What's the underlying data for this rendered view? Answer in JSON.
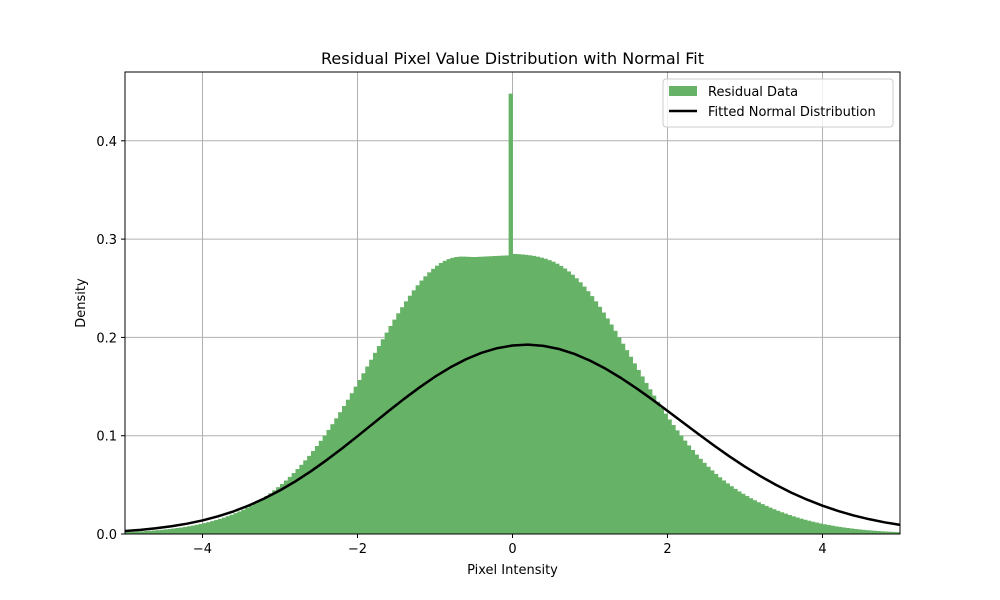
{
  "chart_data": {
    "type": "histogram",
    "title": "Residual Pixel Value Distribution with Normal Fit",
    "xlabel": "Pixel Intensity",
    "ylabel": "Density",
    "xlim": [
      -5,
      5
    ],
    "ylim": [
      0,
      0.47
    ],
    "xticks": [
      -4,
      -2,
      0,
      2,
      4
    ],
    "xtick_labels": [
      "−4",
      "−2",
      "0",
      "2",
      "4"
    ],
    "yticks": [
      0.0,
      0.1,
      0.2,
      0.3,
      0.4
    ],
    "ytick_labels": [
      "0.0",
      "0.1",
      "0.2",
      "0.3",
      "0.4"
    ],
    "grid": true,
    "legend_position": "top-right",
    "series": [
      {
        "name": "Residual Data",
        "kind": "histogram",
        "color": "#66b266",
        "bin_width": 0.05,
        "x": [
          -4.975,
          -4.925,
          -4.875,
          -4.825,
          -4.775,
          -4.725,
          -4.675,
          -4.625,
          -4.575,
          -4.525,
          -4.475,
          -4.425,
          -4.375,
          -4.325,
          -4.275,
          -4.225,
          -4.175,
          -4.125,
          -4.075,
          -4.025,
          -3.975,
          -3.925,
          -3.875,
          -3.825,
          -3.775,
          -3.725,
          -3.675,
          -3.625,
          -3.575,
          -3.525,
          -3.475,
          -3.425,
          -3.375,
          -3.325,
          -3.275,
          -3.225,
          -3.175,
          -3.125,
          -3.075,
          -3.025,
          -2.975,
          -2.925,
          -2.875,
          -2.825,
          -2.775,
          -2.725,
          -2.675,
          -2.625,
          -2.575,
          -2.525,
          -2.475,
          -2.425,
          -2.375,
          -2.325,
          -2.275,
          -2.225,
          -2.175,
          -2.125,
          -2.075,
          -2.025,
          -1.975,
          -1.925,
          -1.875,
          -1.825,
          -1.775,
          -1.725,
          -1.675,
          -1.625,
          -1.575,
          -1.525,
          -1.475,
          -1.425,
          -1.375,
          -1.325,
          -1.275,
          -1.225,
          -1.175,
          -1.125,
          -1.075,
          -1.025,
          -0.975,
          -0.925,
          -0.875,
          -0.825,
          -0.775,
          -0.725,
          -0.675,
          -0.625,
          -0.575,
          -0.525,
          -0.475,
          -0.425,
          -0.375,
          -0.325,
          -0.275,
          -0.225,
          -0.175,
          -0.125,
          -0.075,
          -0.025,
          0.025,
          0.075,
          0.125,
          0.175,
          0.225,
          0.275,
          0.325,
          0.375,
          0.425,
          0.475,
          0.525,
          0.575,
          0.625,
          0.675,
          0.725,
          0.775,
          0.825,
          0.875,
          0.925,
          0.975,
          1.025,
          1.075,
          1.125,
          1.175,
          1.225,
          1.275,
          1.325,
          1.375,
          1.425,
          1.475,
          1.525,
          1.575,
          1.625,
          1.675,
          1.725,
          1.775,
          1.825,
          1.875,
          1.925,
          1.975,
          2.025,
          2.075,
          2.125,
          2.175,
          2.225,
          2.275,
          2.325,
          2.375,
          2.425,
          2.475,
          2.525,
          2.575,
          2.625,
          2.675,
          2.725,
          2.775,
          2.825,
          2.875,
          2.925,
          2.975,
          3.025,
          3.075,
          3.125,
          3.175,
          3.225,
          3.275,
          3.325,
          3.375,
          3.425,
          3.475,
          3.525,
          3.575,
          3.625,
          3.675,
          3.725,
          3.775,
          3.825,
          3.875,
          3.925,
          3.975,
          4.025,
          4.075,
          4.125,
          4.175,
          4.225,
          4.275,
          4.325,
          4.375,
          4.425,
          4.475,
          4.525,
          4.575,
          4.625,
          4.675,
          4.725,
          4.775,
          4.825,
          4.875,
          4.925,
          4.975
        ],
        "y": [
          0.0019,
          0.0021,
          0.0023,
          0.0025,
          0.0027,
          0.003,
          0.0033,
          0.0036,
          0.0039,
          0.0043,
          0.0047,
          0.0051,
          0.0056,
          0.0061,
          0.0066,
          0.0072,
          0.0079,
          0.0086,
          0.0094,
          0.0102,
          0.0111,
          0.012,
          0.0131,
          0.0142,
          0.0154,
          0.0167,
          0.0181,
          0.0196,
          0.0212,
          0.0229,
          0.0247,
          0.0267,
          0.0288,
          0.031,
          0.0334,
          0.0359,
          0.0386,
          0.0414,
          0.0444,
          0.0476,
          0.0509,
          0.0544,
          0.0581,
          0.062,
          0.0661,
          0.0704,
          0.0749,
          0.0795,
          0.0844,
          0.0895,
          0.0948,
          0.1002,
          0.1059,
          0.1117,
          0.1177,
          0.1239,
          0.1302,
          0.1366,
          0.1432,
          0.1499,
          0.1567,
          0.1635,
          0.1704,
          0.1773,
          0.1843,
          0.1912,
          0.1981,
          0.2049,
          0.2116,
          0.2181,
          0.2245,
          0.2307,
          0.2367,
          0.2424,
          0.2479,
          0.253,
          0.2578,
          0.2622,
          0.2662,
          0.2698,
          0.273,
          0.2757,
          0.2779,
          0.2797,
          0.281,
          0.2818,
          0.2822,
          0.2822,
          0.282,
          0.2818,
          0.2818,
          0.282,
          0.2822,
          0.2824,
          0.2826,
          0.2828,
          0.283,
          0.2832,
          0.2834,
          0.448,
          0.2849,
          0.2847,
          0.2844,
          0.284,
          0.2835,
          0.2829,
          0.2821,
          0.2811,
          0.28,
          0.2786,
          0.277,
          0.275,
          0.2727,
          0.2701,
          0.2671,
          0.2638,
          0.2601,
          0.2561,
          0.2517,
          0.247,
          0.242,
          0.2367,
          0.2311,
          0.2253,
          0.2193,
          0.2131,
          0.2067,
          0.2002,
          0.1936,
          0.187,
          0.1803,
          0.1736,
          0.1669,
          0.1603,
          0.1537,
          0.1472,
          0.1408,
          0.1345,
          0.1284,
          0.1224,
          0.1165,
          0.1109,
          0.1054,
          0.1001,
          0.095,
          0.0901,
          0.0854,
          0.0808,
          0.0765,
          0.0724,
          0.0684,
          0.0647,
          0.0611,
          0.0577,
          0.0545,
          0.0515,
          0.0486,
          0.0459,
          0.0433,
          0.0409,
          0.0386,
          0.0364,
          0.0343,
          0.0323,
          0.0304,
          0.0286,
          0.0269,
          0.0252,
          0.0236,
          0.0221,
          0.0207,
          0.0193,
          0.018,
          0.0168,
          0.0156,
          0.0145,
          0.0135,
          0.0125,
          0.0116,
          0.0107,
          0.0099,
          0.0092,
          0.0085,
          0.0078,
          0.0072,
          0.0066,
          0.0061,
          0.0056,
          0.0051,
          0.0047,
          0.0043,
          0.0039,
          0.0036,
          0.0033,
          0.003,
          0.0027,
          0.0025,
          0.0023,
          0.0021,
          0.0019
        ]
      },
      {
        "name": "Fitted Normal Distribution",
        "kind": "line",
        "color": "#000000",
        "x": [
          -5.0,
          -4.8,
          -4.6,
          -4.4,
          -4.2,
          -4.0,
          -3.8,
          -3.6,
          -3.4,
          -3.2,
          -3.0,
          -2.8,
          -2.6,
          -2.4,
          -2.2,
          -2.0,
          -1.8,
          -1.6,
          -1.4,
          -1.2,
          -1.0,
          -0.8,
          -0.6,
          -0.4,
          -0.2,
          0.0,
          0.2,
          0.4,
          0.6,
          0.8,
          1.0,
          1.2,
          1.4,
          1.6,
          1.8,
          2.0,
          2.2,
          2.4,
          2.6,
          2.8,
          3.0,
          3.2,
          3.4,
          3.6,
          3.8,
          4.0,
          4.2,
          4.4,
          4.6,
          4.8,
          5.0
        ],
        "y": [
          0.003,
          0.0042,
          0.0058,
          0.0079,
          0.0105,
          0.0138,
          0.018,
          0.023,
          0.0291,
          0.0362,
          0.0444,
          0.0536,
          0.0639,
          0.0751,
          0.087,
          0.0995,
          0.1122,
          0.125,
          0.1374,
          0.1491,
          0.16,
          0.1696,
          0.1778,
          0.1843,
          0.189,
          0.1918,
          0.1926,
          0.1914,
          0.1882,
          0.1832,
          0.1764,
          0.1682,
          0.1587,
          0.1482,
          0.137,
          0.1253,
          0.1134,
          0.1016,
          0.09,
          0.0789,
          0.0685,
          0.0588,
          0.05,
          0.042,
          0.035,
          0.0288,
          0.0235,
          0.0189,
          0.0151,
          0.0119,
          0.0093
        ]
      }
    ]
  }
}
